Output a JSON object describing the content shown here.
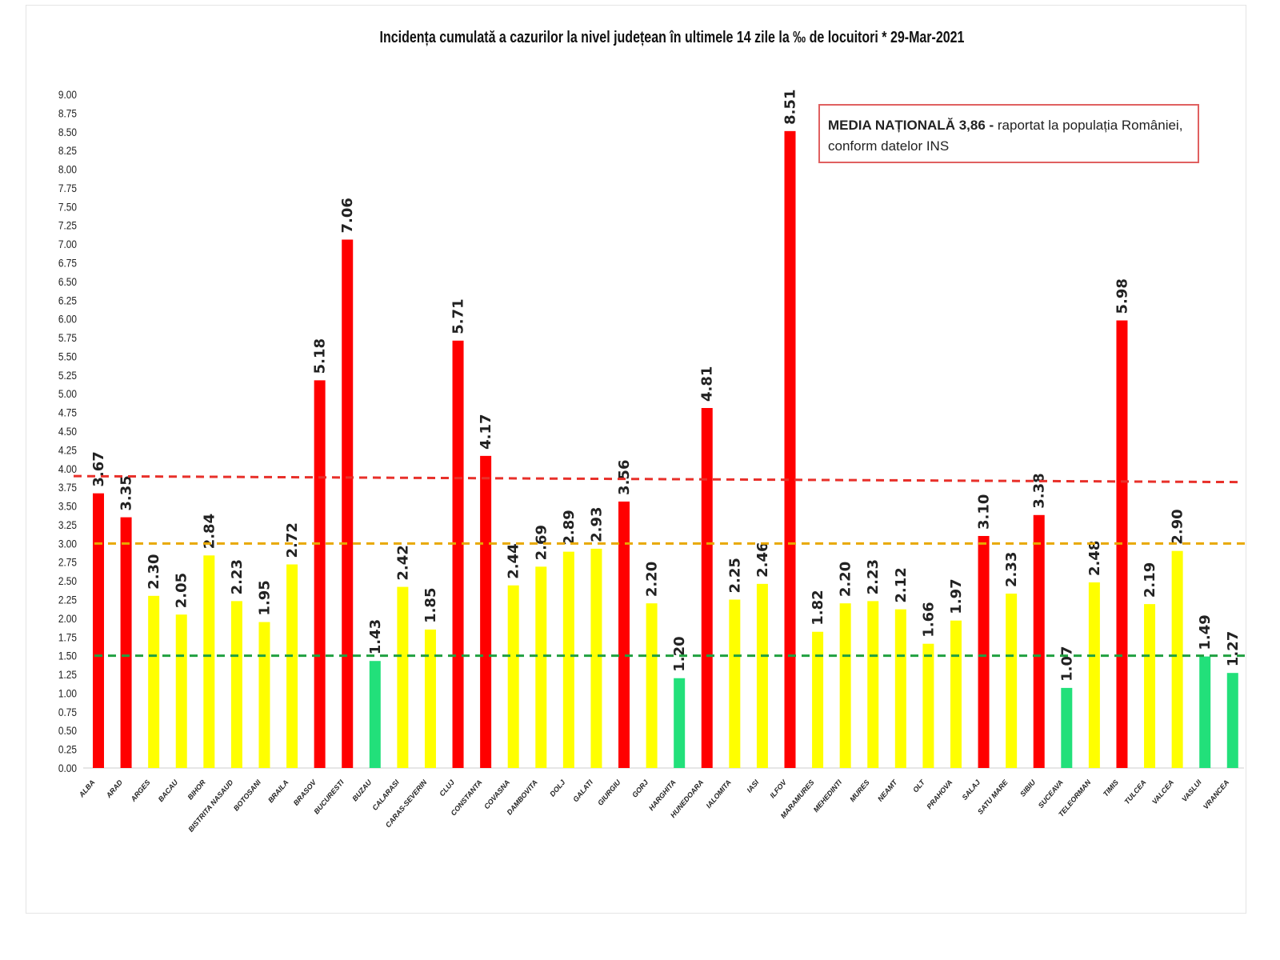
{
  "chart_data": {
    "type": "bar",
    "title": "Incidența cumulată a cazurilor la nivel județean în ultimele 14 zile la ‰ de locuitori * 29-Mar-2021",
    "xlabel": "",
    "ylabel": "",
    "ylim": [
      0,
      9
    ],
    "yticks": [
      "0.00",
      "0.25",
      "0.50",
      "0.75",
      "1.00",
      "1.25",
      "1.50",
      "1.75",
      "2.00",
      "2.25",
      "2.50",
      "2.75",
      "3.00",
      "3.25",
      "3.50",
      "3.75",
      "4.00",
      "4.25",
      "4.50",
      "4.75",
      "5.00",
      "5.25",
      "5.50",
      "5.75",
      "6.00",
      "6.25",
      "6.50",
      "6.75",
      "7.00",
      "7.25",
      "7.50",
      "7.75",
      "8.00",
      "8.25",
      "8.50",
      "8.75",
      "9.00"
    ],
    "grid": false,
    "categories": [
      "ALBA",
      "ARAD",
      "ARGES",
      "BACAU",
      "BIHOR",
      "BISTRITA NASAUD",
      "BOTOSANI",
      "BRAILA",
      "BRASOV",
      "BUCURESTI",
      "BUZAU",
      "CALARASI",
      "CARAS-SEVERIN",
      "CLUJ",
      "CONSTANTA",
      "COVASNA",
      "DAMBOVITA",
      "DOLJ",
      "GALATI",
      "GIURGIU",
      "GORJ",
      "HARGHITA",
      "HUNEDOARA",
      "IALOMITA",
      "IASI",
      "ILFOV",
      "MARAMURES",
      "MEHEDINTI",
      "MURES",
      "NEAMT",
      "OLT",
      "PRAHOVA",
      "SALAJ",
      "SATU MARE",
      "SIBIU",
      "SUCEAVA",
      "TELEORMAN",
      "TIMIS",
      "TULCEA",
      "VALCEA",
      "VASLUI",
      "VRANCEA"
    ],
    "values": [
      3.67,
      3.35,
      2.3,
      2.05,
      2.84,
      2.23,
      1.95,
      2.72,
      5.18,
      7.06,
      1.43,
      2.42,
      1.85,
      5.71,
      4.17,
      2.44,
      2.69,
      2.89,
      2.93,
      3.56,
      2.2,
      1.2,
      4.81,
      2.25,
      2.46,
      8.51,
      1.82,
      2.2,
      2.23,
      2.12,
      1.66,
      1.97,
      3.1,
      2.33,
      3.38,
      1.07,
      2.48,
      5.98,
      2.19,
      2.9,
      1.49,
      1.27
    ],
    "data_labels": [
      "3.67",
      "3.35",
      "2.30",
      "2.05",
      "2.84",
      "2.23",
      "1.95",
      "2.72",
      "5.18",
      "7.06",
      "1.43",
      "2.42",
      "1.85",
      "5.71",
      "4.17",
      "2.44",
      "2.69",
      "2.89",
      "2.93",
      "3.56",
      "2.20",
      "1.20",
      "4.81",
      "2.25",
      "2.46",
      "8.51",
      "1.82",
      "2.20",
      "2.23",
      "2.12",
      "1.66",
      "1.97",
      "3.10",
      "2.33",
      "3.38",
      "1.07",
      "2.48",
      "5.98",
      "2.19",
      "2.90",
      "1.49",
      "1.27"
    ],
    "reference_lines": [
      {
        "value": 3.86,
        "color": "#e8302a",
        "style": "dashed"
      },
      {
        "value": 3.0,
        "color": "#e8a800",
        "style": "dashed"
      },
      {
        "value": 1.5,
        "color": "#20a040",
        "style": "dashed"
      }
    ],
    "colors": {
      "high": "#ff0000",
      "medium": "#ffff00",
      "low": "#22e07a"
    },
    "annotation": {
      "bold": "MEDIA NAȚIONALĂ  3,86 -",
      "text": " raportat la populația României,",
      "line2": "conform datelor INS"
    }
  }
}
